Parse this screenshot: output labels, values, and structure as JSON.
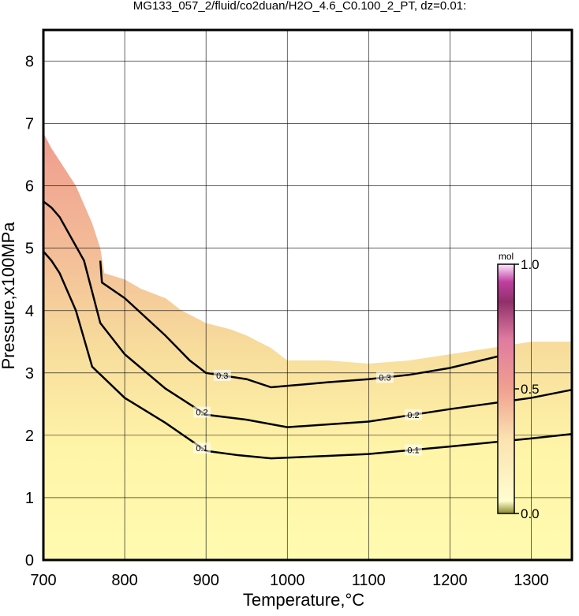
{
  "chart_data": {
    "type": "contour",
    "title": "MG133_057_2/fluid/co2duan/H2O_4.6_C0.100_2_PT, dz=0.01:",
    "x_label": "Temperature,°C",
    "y_label": "Pressure,x100MPa",
    "xlim": [
      700,
      1350
    ],
    "ylim": [
      0,
      8.5
    ],
    "xticks": [
      700,
      800,
      900,
      1000,
      1100,
      1200,
      1300
    ],
    "yticks": [
      0,
      1,
      2,
      3,
      4,
      5,
      6,
      7,
      8
    ],
    "grid": true,
    "boundary": {
      "x": [
        700,
        710,
        720,
        740,
        760,
        770,
        775,
        800,
        820,
        850,
        870,
        900,
        930,
        950,
        980,
        1000,
        1050,
        1100,
        1150,
        1200,
        1250,
        1300,
        1350
      ],
      "y": [
        6.85,
        6.6,
        6.4,
        6.0,
        5.4,
        5.0,
        4.6,
        4.5,
        4.35,
        4.2,
        4.0,
        3.8,
        3.7,
        3.6,
        3.4,
        3.2,
        3.2,
        3.15,
        3.2,
        3.3,
        3.4,
        3.5,
        3.5
      ]
    },
    "contours": [
      {
        "level": 0.1,
        "x": [
          700,
          710,
          720,
          740,
          760,
          780,
          800,
          850,
          900,
          940,
          980,
          1050,
          1100,
          1200,
          1300,
          1350
        ],
        "y": [
          4.95,
          4.8,
          4.6,
          4.0,
          3.1,
          2.85,
          2.6,
          2.2,
          1.75,
          1.68,
          1.63,
          1.67,
          1.7,
          1.82,
          1.95,
          2.02
        ]
      },
      {
        "level": 0.2,
        "x": [
          700,
          710,
          720,
          750,
          770,
          800,
          850,
          900,
          950,
          1000,
          1100,
          1200,
          1300,
          1350
        ],
        "y": [
          5.75,
          5.65,
          5.5,
          4.8,
          3.8,
          3.3,
          2.75,
          2.33,
          2.25,
          2.13,
          2.22,
          2.42,
          2.6,
          2.73
        ]
      },
      {
        "level": 0.3,
        "x": [
          770,
          772,
          800,
          850,
          880,
          900,
          950,
          980,
          1050,
          1100,
          1150,
          1200,
          1270
        ],
        "y": [
          4.8,
          4.45,
          4.2,
          3.6,
          3.2,
          3.0,
          2.9,
          2.77,
          2.85,
          2.9,
          2.97,
          3.08,
          3.3
        ]
      }
    ],
    "colorbar": {
      "label": "mol",
      "lim": [
        0,
        1
      ],
      "ticks": [
        {
          "value": 0,
          "label": "0.0"
        },
        0.5,
        {
          "value": 1,
          "label": "1.0"
        }
      ]
    }
  }
}
